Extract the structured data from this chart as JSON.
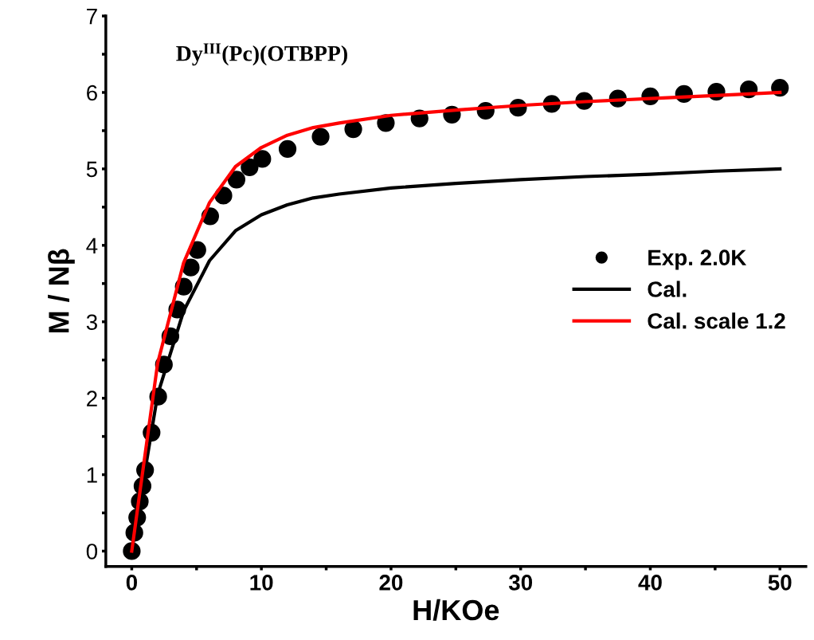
{
  "chart_data": {
    "type": "line",
    "xlabel": "H/KOe",
    "ylabel": "M / Nβ",
    "annotations": [
      "Dy$^{III}$(Pc)(OTBPP)"
    ],
    "xlim": [
      -2,
      52
    ],
    "ylim": [
      -0.2,
      7
    ],
    "xticks": [
      0,
      {
        "value": 5,
        "label": null
      },
      10,
      {
        "value": 15,
        "label": null
      },
      20,
      {
        "value": 25,
        "label": null
      },
      30,
      {
        "value": 35,
        "label": null
      },
      40,
      {
        "value": 45,
        "label": null
      },
      50
    ],
    "yticks": [
      0,
      {
        "value": 0.5,
        "label": null
      },
      1,
      {
        "value": 1.5,
        "label": null
      },
      2,
      {
        "value": 2.5,
        "label": null
      },
      3,
      {
        "value": 3.5,
        "label": null
      },
      4,
      {
        "value": 4.5,
        "label": null
      },
      5,
      {
        "value": 5.5,
        "label": null
      },
      6,
      {
        "value": 6.5,
        "label": null
      },
      7
    ],
    "grid": false,
    "legend": "right",
    "series": [
      {
        "name": "Exp. 2.0K",
        "type": "scatter",
        "marker": "circle",
        "color": "#000000",
        "x": [
          0,
          0.2,
          0.42,
          0.62,
          0.83,
          1.03,
          1.53,
          2.04,
          2.48,
          2.98,
          3.51,
          4.01,
          4.55,
          5.06,
          6.05,
          7.07,
          8.08,
          9.09,
          10.07,
          12.02,
          14.57,
          17.09,
          19.6,
          22.2,
          24.7,
          27.3,
          29.8,
          32.4,
          34.9,
          37.5,
          40.0,
          42.6,
          45.1,
          47.6,
          50.0
        ],
        "values": [
          0,
          0.24,
          0.44,
          0.65,
          0.85,
          1.06,
          1.55,
          2.02,
          2.44,
          2.81,
          3.16,
          3.46,
          3.71,
          3.94,
          4.38,
          4.65,
          4.86,
          5.02,
          5.13,
          5.26,
          5.42,
          5.52,
          5.6,
          5.66,
          5.71,
          5.76,
          5.8,
          5.85,
          5.89,
          5.92,
          5.95,
          5.98,
          6.01,
          6.04,
          6.06
        ]
      },
      {
        "name": "Cal.",
        "color": "#000000",
        "x": [
          0,
          2,
          4,
          6,
          8,
          10,
          12,
          14,
          16,
          20,
          25,
          30,
          35,
          40,
          45,
          50
        ],
        "values": [
          0,
          2.05,
          3.14,
          3.8,
          4.19,
          4.4,
          4.53,
          4.62,
          4.67,
          4.75,
          4.81,
          4.86,
          4.9,
          4.93,
          4.97,
          5.0
        ]
      },
      {
        "name": "Cal. scale 1.2",
        "color": "#ff0000",
        "x": [
          0,
          2,
          4,
          6,
          8,
          10,
          12,
          14,
          16,
          20,
          25,
          30,
          35,
          40,
          45,
          50
        ],
        "values": [
          0,
          2.46,
          3.77,
          4.56,
          5.03,
          5.28,
          5.44,
          5.54,
          5.6,
          5.7,
          5.77,
          5.83,
          5.88,
          5.92,
          5.96,
          6.0
        ]
      }
    ]
  }
}
